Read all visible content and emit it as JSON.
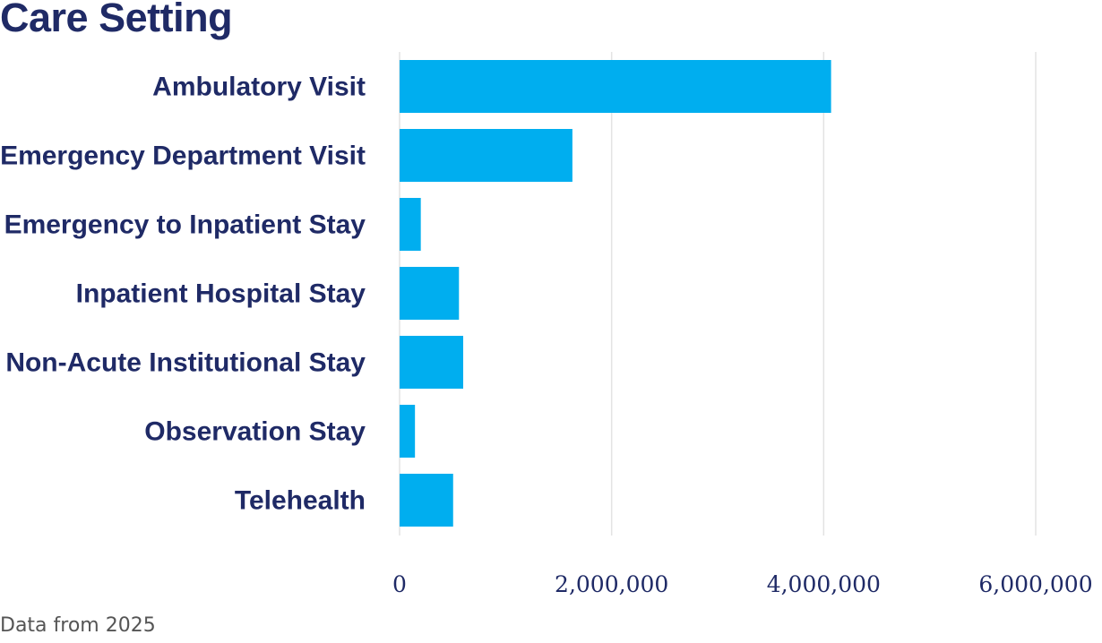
{
  "chart_data": {
    "type": "bar",
    "orientation": "horizontal",
    "title": "Care Setting",
    "categories": [
      "Ambulatory Visit",
      "Emergency Department Visit",
      "Emergency to Inpatient Stay",
      "Inpatient Hospital Stay",
      "Non-Acute Institutional Stay",
      "Observation Stay",
      "Telehealth"
    ],
    "values": [
      4070000,
      1630000,
      200000,
      560000,
      600000,
      145000,
      505000
    ],
    "xlim": [
      0,
      6000000
    ],
    "xticks": [
      0,
      2000000,
      4000000,
      6000000
    ],
    "xtick_labels": [
      "0",
      "2,000,000",
      "4,000,000",
      "6,000,000"
    ],
    "grid": "vertical",
    "bar_color": "#00aeef",
    "text_color": "#1f2a66",
    "footnote": "Data from 2025"
  }
}
